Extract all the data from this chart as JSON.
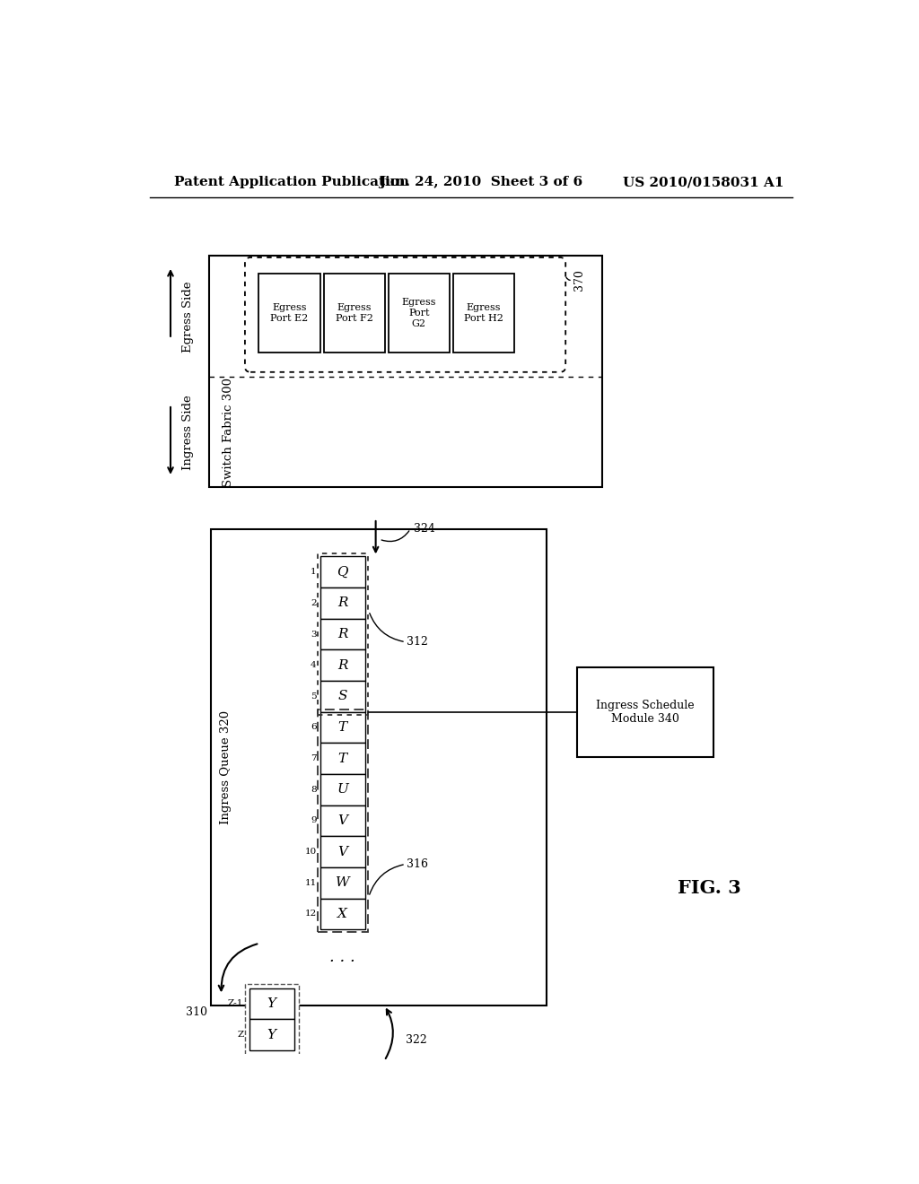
{
  "header_left": "Patent Application Publication",
  "header_mid": "Jun. 24, 2010  Sheet 3 of 6",
  "header_right": "US 2010/0158031 A1",
  "fig_label": "FIG. 3",
  "switch_fabric_label": "Switch Fabric 300",
  "egress_side_label": "Egress Side",
  "ingress_side_label": "Ingress Side",
  "egress_ports": [
    "Egress\nPort E2",
    "Egress\nPort F2",
    "Egress\nPort\nG2",
    "Egress\nPort H2"
  ],
  "egress_group_label": "370",
  "ingress_queue_label": "Ingress Queue 320",
  "all_cells": [
    "Q",
    "R",
    "R",
    "R",
    "S",
    "T",
    "T",
    "U",
    "V",
    "V",
    "W",
    "X"
  ],
  "all_nums": [
    "1",
    "2",
    "3",
    "4",
    "5",
    "6",
    "7",
    "8",
    "9",
    "10",
    "11",
    "12"
  ],
  "label_312": "312",
  "label_316": "316",
  "label_322": "322",
  "label_324": "324",
  "label_310": "310",
  "ingress_schedule_label": "Ingress Schedule\nModule 340",
  "sep_cells": [
    "Y",
    "Y"
  ],
  "sep_nums": [
    "Z-1",
    "Z"
  ],
  "bg_color": "#ffffff"
}
